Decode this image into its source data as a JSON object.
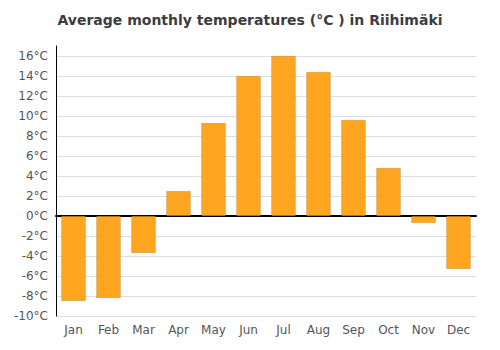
{
  "chart_data": {
    "type": "bar",
    "title": "Average monthly temperatures (°C ) in Riihimäki",
    "categories": [
      "Jan",
      "Feb",
      "Mar",
      "Apr",
      "May",
      "Jun",
      "Jul",
      "Aug",
      "Sep",
      "Oct",
      "Nov",
      "Dec"
    ],
    "values": [
      -8.5,
      -8.2,
      -3.7,
      2.5,
      9.3,
      14.0,
      16.0,
      14.4,
      9.6,
      4.8,
      -0.7,
      -5.3
    ],
    "color": "#FFA520",
    "ylim": [
      -10,
      17
    ],
    "yticks": [
      {
        "value": -10,
        "label": "-10°C"
      },
      {
        "value": -8,
        "label": "-8°C"
      },
      {
        "value": -6,
        "label": "-6°C"
      },
      {
        "value": -4,
        "label": "-4°C"
      },
      {
        "value": -2,
        "label": "-2°C"
      },
      {
        "value": 0,
        "label": "0°C"
      },
      {
        "value": 2,
        "label": "2°C"
      },
      {
        "value": 4,
        "label": "4°C"
      },
      {
        "value": 6,
        "label": "6°C"
      },
      {
        "value": 8,
        "label": "8°C"
      },
      {
        "value": 10,
        "label": "10°C"
      },
      {
        "value": 12,
        "label": "12°C"
      },
      {
        "value": 14,
        "label": "14°C"
      },
      {
        "value": 16,
        "label": "16°C"
      }
    ],
    "grid": true
  }
}
